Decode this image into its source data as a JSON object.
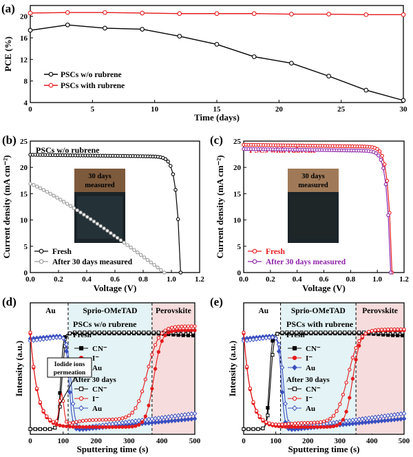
{
  "chart_data": [
    {
      "panel": "(a)",
      "type": "line",
      "xlabel": "Time (days)",
      "ylabel": "PCE (%)",
      "xlim": [
        0,
        30
      ],
      "ylim": [
        4,
        22
      ],
      "xticks": [
        "0",
        "5",
        "10",
        "15",
        "20",
        "25",
        "30"
      ],
      "yticks": [
        "4",
        "8",
        "12",
        "16",
        "20"
      ],
      "legend_position": "bottom-left",
      "series": [
        {
          "name": "PSCs w/o rubrene",
          "color": "#000000",
          "x": [
            0,
            3,
            6,
            9,
            12,
            15,
            18,
            21,
            24,
            27,
            30
          ],
          "y": [
            17.4,
            18.4,
            17.8,
            17.6,
            16.3,
            14.8,
            12.5,
            11.3,
            8.9,
            6.3,
            4.4
          ]
        },
        {
          "name": "PSCs with rubrene",
          "color": "#e41a1c",
          "x": [
            0,
            3,
            6,
            9,
            12,
            15,
            18,
            21,
            24,
            27,
            30
          ],
          "y": [
            20.6,
            20.7,
            20.7,
            20.6,
            20.5,
            20.5,
            20.5,
            20.4,
            20.4,
            20.3,
            20.3
          ]
        }
      ]
    },
    {
      "panel": "(b)",
      "type": "line",
      "title": "PSCs w/o rubrene",
      "xlabel": "Voltage (V)",
      "ylabel": "Current density (mA cm⁻²)",
      "xlim": [
        0,
        1.2
      ],
      "ylim": [
        0,
        25
      ],
      "xticks": [
        "0.0",
        "0.2",
        "0.4",
        "0.6",
        "0.8",
        "1.0",
        "1.2"
      ],
      "yticks": [
        "0",
        "5",
        "10",
        "15",
        "20",
        "25"
      ],
      "inset_label": "30 days\nmeasured",
      "legend_position": "bottom-left",
      "series": [
        {
          "name": "Fresh",
          "color": "#000000",
          "jsc": 22.4,
          "voc": 1.065
        },
        {
          "name": "After 30 days measured",
          "color": "#999999",
          "jsc": 16.9,
          "voc": 0.95
        }
      ]
    },
    {
      "panel": "(c)",
      "type": "line",
      "title": "PSCs with rubrene",
      "xlabel": "Voltage (V)",
      "ylabel": "Current density (mA cm⁻²)",
      "xlim": [
        0,
        1.2
      ],
      "ylim": [
        0,
        25
      ],
      "xticks": [
        "0.0",
        "0.2",
        "0.4",
        "0.6",
        "0.8",
        "1.0",
        "1.2"
      ],
      "yticks": [
        "0",
        "5",
        "10",
        "15",
        "20",
        "25"
      ],
      "inset_label": "30 days\nmeasured",
      "legend_position": "bottom-left",
      "series": [
        {
          "name": "Fresh",
          "color": "#e41a1c",
          "jsc": 24.3,
          "voc": 1.11
        },
        {
          "name": "After 30 days measured",
          "color": "#8e24aa",
          "jsc": 23.5,
          "voc": 1.1
        }
      ]
    },
    {
      "panel": "(d)",
      "type": "line",
      "title": "PSCs w/o rubrene",
      "xlabel": "Sputtering time (s)",
      "ylabel": "Intensity (a.u.)",
      "xlim": [
        0,
        500
      ],
      "xticks": [
        "0",
        "100",
        "200",
        "300",
        "400",
        "500"
      ],
      "layers": [
        "Au",
        "Sprio-OMeTAD",
        "Perovskite"
      ],
      "layer_boundaries": [
        115,
        370
      ],
      "annotation": "Iodide ions\npermeation",
      "legend_groups": [
        "Fresh",
        "After 30 days"
      ],
      "series": [
        {
          "name": "CN⁻",
          "group": "Fresh",
          "color": "#000000"
        },
        {
          "name": "I⁻",
          "group": "Fresh",
          "color": "#e41a1c"
        },
        {
          "name": "Au",
          "group": "Fresh",
          "color": "#3a4fc0"
        },
        {
          "name": "CN⁻",
          "group": "After 30 days",
          "color": "#000000"
        },
        {
          "name": "I⁻",
          "group": "After 30 days",
          "color": "#e41a1c"
        },
        {
          "name": "Au",
          "group": "After 30 days",
          "color": "#3a4fc0"
        }
      ]
    },
    {
      "panel": "(e)",
      "type": "line",
      "title": "PSCs with rubrene",
      "xlabel": "Sputtering time (s)",
      "ylabel": "Intensity (a.u.)",
      "xlim": [
        0,
        500
      ],
      "xticks": [
        "0",
        "100",
        "200",
        "300",
        "400",
        "500"
      ],
      "layers": [
        "Au",
        "Sprio-OMeTAD",
        "Perovskite"
      ],
      "layer_boundaries": [
        115,
        350
      ],
      "legend_groups": [
        "Fresh",
        "After 30 days"
      ],
      "series": [
        {
          "name": "CN⁻",
          "group": "Fresh",
          "color": "#000000"
        },
        {
          "name": "I⁻",
          "group": "Fresh",
          "color": "#e41a1c"
        },
        {
          "name": "Au",
          "group": "Fresh",
          "color": "#3a4fc0"
        },
        {
          "name": "CN⁻",
          "group": "After 30 days",
          "color": "#000000"
        },
        {
          "name": "I⁻",
          "group": "After 30 days",
          "color": "#e41a1c"
        },
        {
          "name": "Au",
          "group": "After 30 days",
          "color": "#3a4fc0"
        }
      ]
    }
  ]
}
